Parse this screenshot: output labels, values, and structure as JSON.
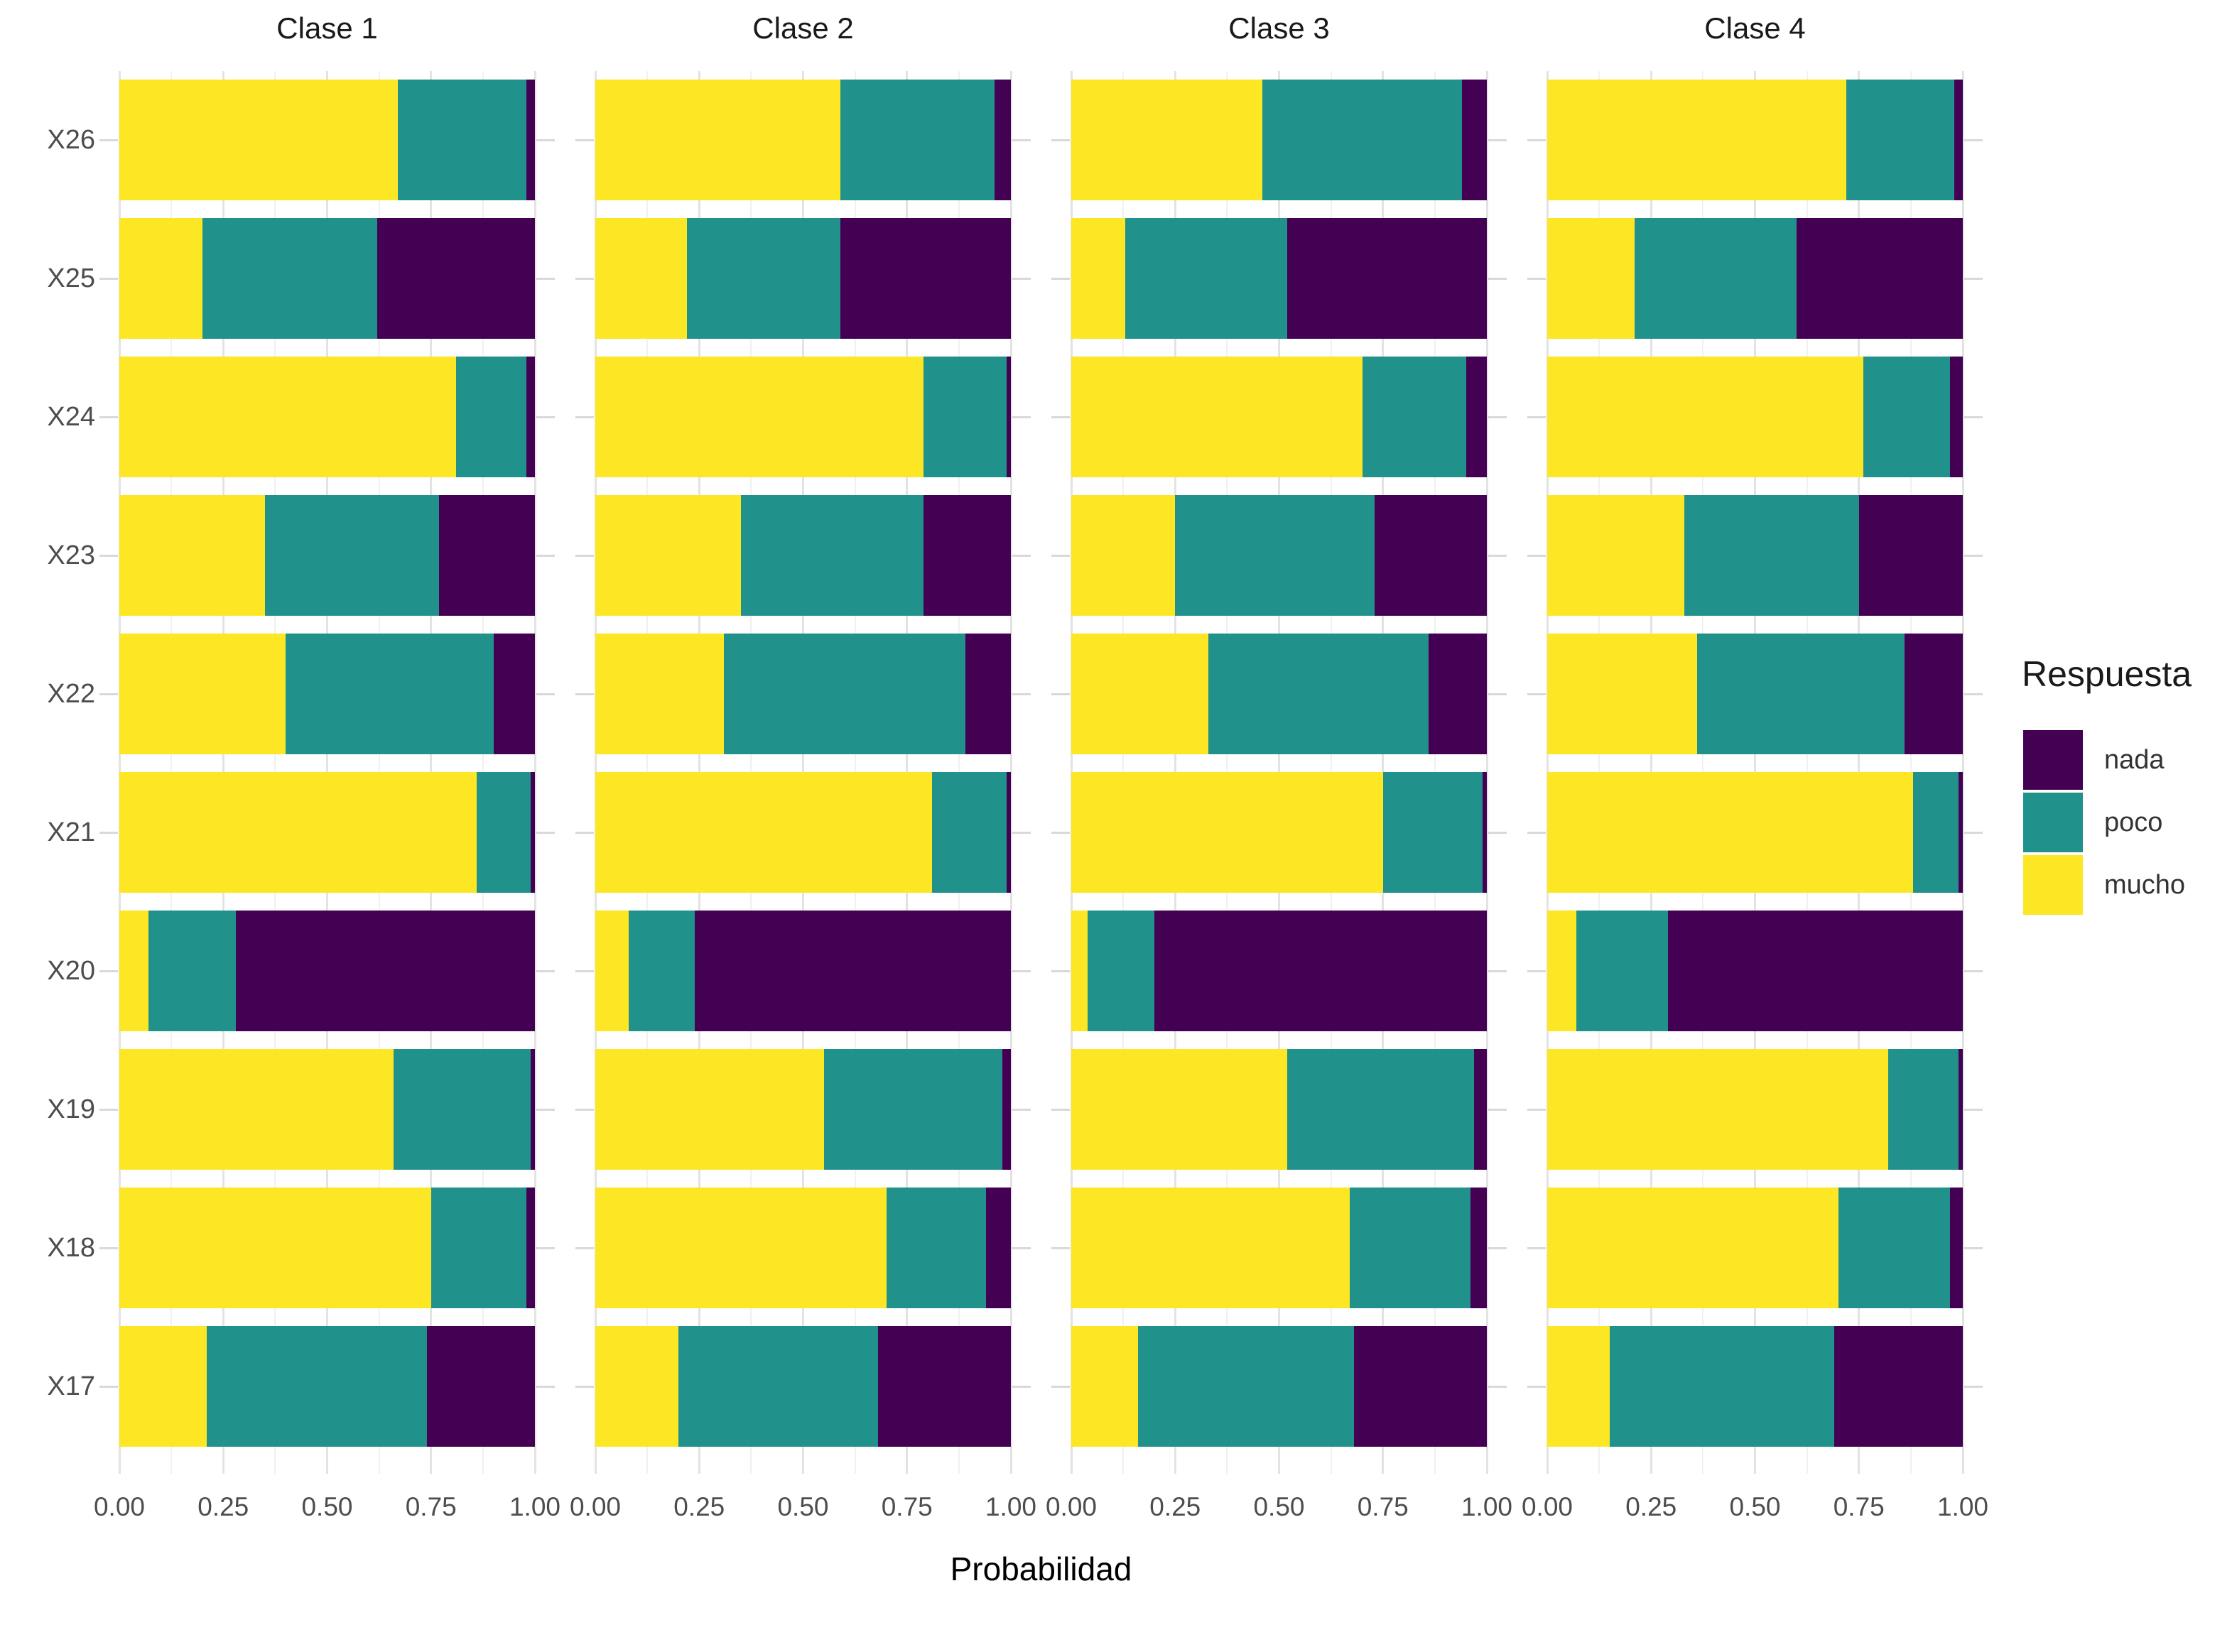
{
  "axes": {
    "x_title": "Probabilidad",
    "x_tick_labels": [
      "0.00",
      "0.25",
      "0.50",
      "0.75",
      "1.00"
    ],
    "y_labels_top_to_bottom": [
      "X26",
      "X25",
      "X24",
      "X23",
      "X22",
      "X21",
      "X20",
      "X19",
      "X18",
      "X17"
    ]
  },
  "legend": {
    "title": "Respuesta",
    "items": [
      {
        "label": "nada",
        "color": "#440154"
      },
      {
        "label": "poco",
        "color": "#21918c"
      },
      {
        "label": "mucho",
        "color": "#fde725"
      }
    ]
  },
  "chart_data": {
    "type": "bar",
    "orientation": "horizontal",
    "stacked": true,
    "x_range": [
      0,
      1
    ],
    "grid": "major 0.25 / minor 0.125, light gray on white",
    "legend_position": "right",
    "segments_order_along_bar": [
      "mucho",
      "poco",
      "nada"
    ],
    "segment_colors": {
      "mucho": "#fde725",
      "poco": "#21918c",
      "nada": "#440154"
    },
    "categories_top_to_bottom": [
      "X26",
      "X25",
      "X24",
      "X23",
      "X22",
      "X21",
      "X20",
      "X19",
      "X18",
      "X17"
    ],
    "facets": [
      {
        "title": "Clase 1",
        "values": {
          "X26": {
            "mucho": 0.67,
            "poco": 0.31,
            "nada": 0.02
          },
          "X25": {
            "mucho": 0.2,
            "poco": 0.42,
            "nada": 0.38
          },
          "X24": {
            "mucho": 0.81,
            "poco": 0.17,
            "nada": 0.02
          },
          "X23": {
            "mucho": 0.35,
            "poco": 0.42,
            "nada": 0.23
          },
          "X22": {
            "mucho": 0.4,
            "poco": 0.5,
            "nada": 0.1
          },
          "X21": {
            "mucho": 0.86,
            "poco": 0.13,
            "nada": 0.01
          },
          "X20": {
            "mucho": 0.07,
            "poco": 0.21,
            "nada": 0.72
          },
          "X19": {
            "mucho": 0.66,
            "poco": 0.33,
            "nada": 0.01
          },
          "X18": {
            "mucho": 0.75,
            "poco": 0.23,
            "nada": 0.02
          },
          "X17": {
            "mucho": 0.21,
            "poco": 0.53,
            "nada": 0.26
          }
        }
      },
      {
        "title": "Clase 2",
        "values": {
          "X26": {
            "mucho": 0.59,
            "poco": 0.37,
            "nada": 0.04
          },
          "X25": {
            "mucho": 0.22,
            "poco": 0.37,
            "nada": 0.41
          },
          "X24": {
            "mucho": 0.79,
            "poco": 0.2,
            "nada": 0.01
          },
          "X23": {
            "mucho": 0.35,
            "poco": 0.44,
            "nada": 0.21
          },
          "X22": {
            "mucho": 0.31,
            "poco": 0.58,
            "nada": 0.11
          },
          "X21": {
            "mucho": 0.81,
            "poco": 0.18,
            "nada": 0.01
          },
          "X20": {
            "mucho": 0.08,
            "poco": 0.16,
            "nada": 0.76
          },
          "X19": {
            "mucho": 0.55,
            "poco": 0.43,
            "nada": 0.02
          },
          "X18": {
            "mucho": 0.7,
            "poco": 0.24,
            "nada": 0.06
          },
          "X17": {
            "mucho": 0.2,
            "poco": 0.48,
            "nada": 0.32
          }
        }
      },
      {
        "title": "Clase 3",
        "values": {
          "X26": {
            "mucho": 0.46,
            "poco": 0.48,
            "nada": 0.06
          },
          "X25": {
            "mucho": 0.13,
            "poco": 0.39,
            "nada": 0.48
          },
          "X24": {
            "mucho": 0.7,
            "poco": 0.25,
            "nada": 0.05
          },
          "X23": {
            "mucho": 0.25,
            "poco": 0.48,
            "nada": 0.27
          },
          "X22": {
            "mucho": 0.33,
            "poco": 0.53,
            "nada": 0.14
          },
          "X21": {
            "mucho": 0.75,
            "poco": 0.24,
            "nada": 0.01
          },
          "X20": {
            "mucho": 0.04,
            "poco": 0.16,
            "nada": 0.8
          },
          "X19": {
            "mucho": 0.52,
            "poco": 0.45,
            "nada": 0.03
          },
          "X18": {
            "mucho": 0.67,
            "poco": 0.29,
            "nada": 0.04
          },
          "X17": {
            "mucho": 0.16,
            "poco": 0.52,
            "nada": 0.32
          }
        }
      },
      {
        "title": "Clase 4",
        "values": {
          "X26": {
            "mucho": 0.72,
            "poco": 0.26,
            "nada": 0.02
          },
          "X25": {
            "mucho": 0.21,
            "poco": 0.39,
            "nada": 0.4
          },
          "X24": {
            "mucho": 0.76,
            "poco": 0.21,
            "nada": 0.03
          },
          "X23": {
            "mucho": 0.33,
            "poco": 0.42,
            "nada": 0.25
          },
          "X22": {
            "mucho": 0.36,
            "poco": 0.5,
            "nada": 0.14
          },
          "X21": {
            "mucho": 0.88,
            "poco": 0.11,
            "nada": 0.01
          },
          "X20": {
            "mucho": 0.07,
            "poco": 0.22,
            "nada": 0.71
          },
          "X19": {
            "mucho": 0.82,
            "poco": 0.17,
            "nada": 0.01
          },
          "X18": {
            "mucho": 0.7,
            "poco": 0.27,
            "nada": 0.03
          },
          "X17": {
            "mucho": 0.15,
            "poco": 0.54,
            "nada": 0.31
          }
        }
      }
    ]
  }
}
